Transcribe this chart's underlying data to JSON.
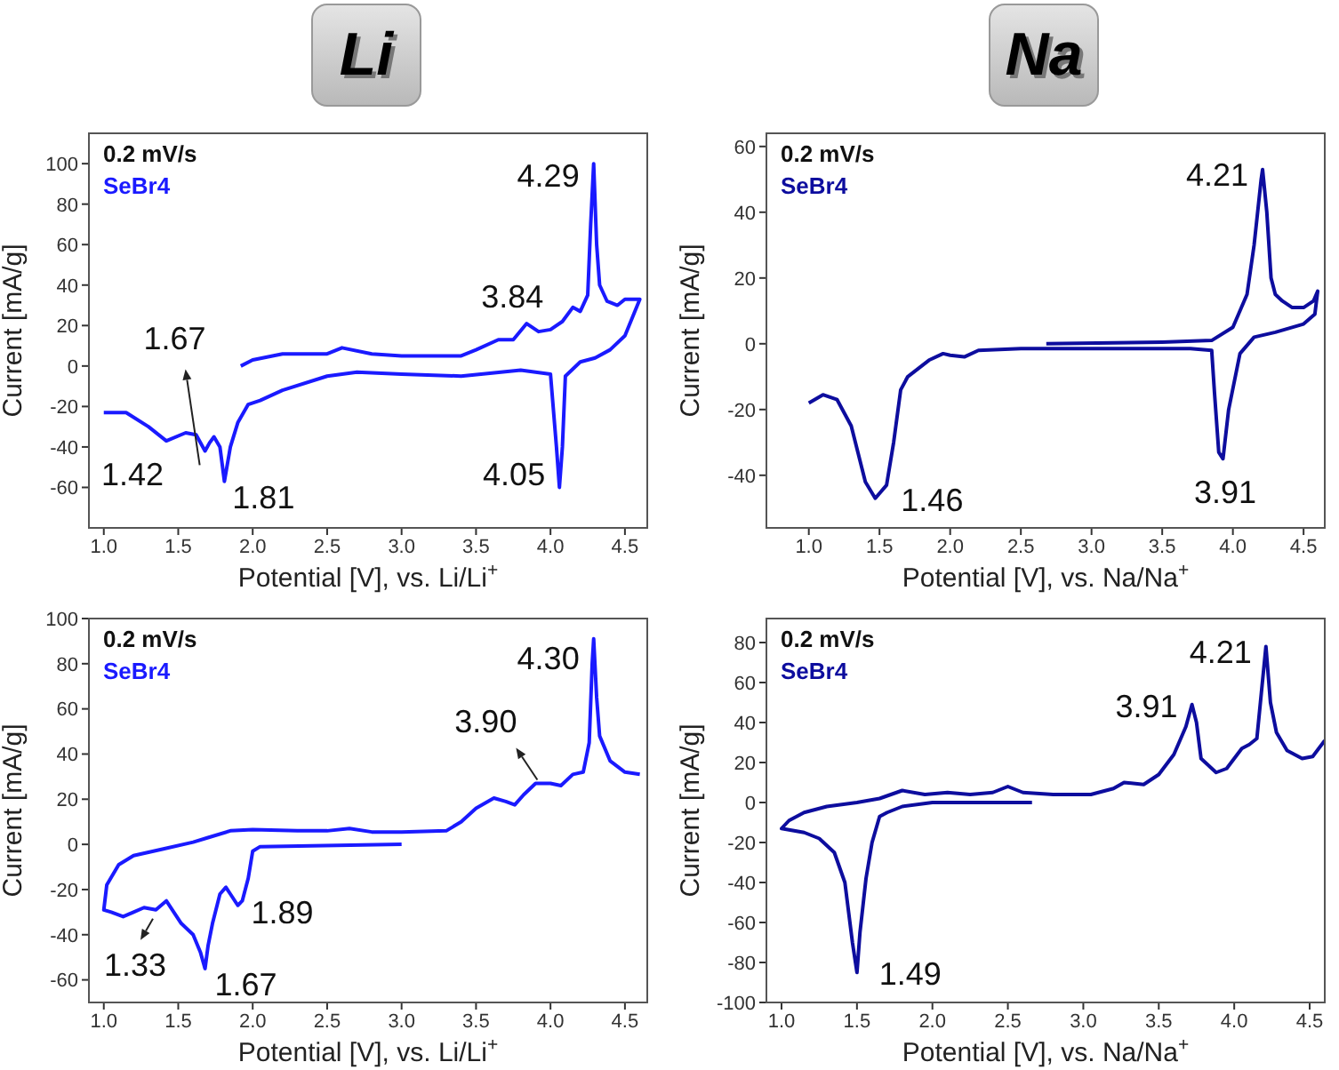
{
  "chart_data": [
    {
      "type": "line",
      "title": "Li",
      "xlabel": "Potential [V], vs. Li/Li$^{+}$",
      "ylabel": "Current [mA/g]",
      "xlim": [
        0.9,
        4.65
      ],
      "xticks": [
        {
          "value": 1,
          "label": "1.0"
        },
        {
          "value": 1.5,
          "label": "1.5"
        },
        {
          "value": 2,
          "label": "2.0"
        },
        {
          "value": 2.5,
          "label": "2.5"
        },
        {
          "value": 3,
          "label": "3.0"
        },
        {
          "value": 3.5,
          "label": "3.5"
        },
        {
          "value": 4,
          "label": "4.0"
        },
        {
          "value": 4.5,
          "label": "4.5"
        }
      ],
      "ylim": [
        -80,
        115
      ],
      "yticks": [
        -60,
        -40,
        -20,
        0,
        20,
        40,
        60,
        80,
        100
      ],
      "marker": "none",
      "series": [
        {
          "name": "SeBr4",
          "color": "#1a1aff",
          "x": [
            1.92,
            2.0,
            2.2,
            2.5,
            2.6,
            2.8,
            3.0,
            3.4,
            3.5,
            3.65,
            3.75,
            3.84,
            3.92,
            4.0,
            4.08,
            4.15,
            4.2,
            4.25,
            4.27,
            4.29,
            4.31,
            4.33,
            4.38,
            4.45,
            4.5,
            4.6,
            4.5,
            4.4,
            4.3,
            4.2,
            4.1,
            4.08,
            4.06,
            4.04,
            4.0,
            3.8,
            3.4,
            3.0,
            2.7,
            2.5,
            2.2,
            2.05,
            1.97,
            1.9,
            1.85,
            1.81,
            1.78,
            1.74,
            1.71,
            1.68,
            1.62,
            1.55,
            1.42,
            1.3,
            1.15,
            1.0
          ],
          "values": [
            0,
            3,
            6,
            6,
            9,
            6,
            5,
            5,
            8,
            13,
            13,
            21,
            17,
            18,
            22,
            29,
            27,
            35,
            70,
            100,
            60,
            40,
            32,
            30,
            33,
            33,
            15,
            8,
            4,
            2,
            -5,
            -40,
            -60,
            -40,
            -4,
            -2,
            -5,
            -4,
            -3,
            -5,
            -12,
            -17,
            -19,
            -28,
            -40,
            -57,
            -40,
            -35,
            -38,
            -42,
            -34,
            -33,
            -37,
            -30,
            -23,
            -23
          ]
        }
      ],
      "annotations": [
        "0.2 mV/s",
        {
          "text": "4.29",
          "x": 4.29,
          "y": 100
        },
        {
          "text": "3.84",
          "x": 3.84,
          "y": 21
        },
        {
          "text": "4.05",
          "x": 4.06,
          "y": -60
        },
        {
          "text": "1.67",
          "x": 1.68,
          "y": -42
        },
        {
          "text": "1.42",
          "x": 1.42,
          "y": -37
        },
        {
          "text": "1.81",
          "x": 1.81,
          "y": -57
        }
      ]
    },
    {
      "type": "line",
      "title": "Na",
      "xlabel": "Potential [V], vs. Na/Na$^{+}$",
      "ylabel": "Current [mA/g]",
      "xlim": [
        0.7,
        4.65
      ],
      "xticks": [
        {
          "value": 1,
          "label": "1.0"
        },
        {
          "value": 1.5,
          "label": "1.5"
        },
        {
          "value": 2,
          "label": "2.0"
        },
        {
          "value": 2.5,
          "label": "2.5"
        },
        {
          "value": 3,
          "label": "3.0"
        },
        {
          "value": 3.5,
          "label": "3.5"
        },
        {
          "value": 4,
          "label": "4.0"
        },
        {
          "value": 4.5,
          "label": "4.5"
        }
      ],
      "ylim": [
        -56,
        64
      ],
      "yticks": [
        -40,
        -20,
        0,
        20,
        40,
        60
      ],
      "marker": "none",
      "series": [
        {
          "name": "SeBr4",
          "color": "#0d0d9e",
          "x": [
            2.68,
            3.5,
            3.85,
            4.0,
            4.1,
            4.15,
            4.2,
            4.21,
            4.24,
            4.27,
            4.3,
            4.35,
            4.42,
            4.5,
            4.57,
            4.6,
            4.58,
            4.5,
            4.3,
            4.15,
            4.05,
            3.97,
            3.93,
            3.9,
            3.87,
            3.85,
            3.7,
            3.0,
            2.5,
            2.2,
            2.1,
            2.0,
            1.95,
            1.85,
            1.7,
            1.65,
            1.6,
            1.55,
            1.47,
            1.4,
            1.3,
            1.2,
            1.1,
            1.0
          ],
          "values": [
            0,
            0.5,
            1,
            5,
            15,
            30,
            50,
            53,
            40,
            20,
            15,
            13,
            11,
            11,
            13,
            16,
            9,
            6,
            3.5,
            2,
            -3,
            -20,
            -35,
            -33,
            -15,
            -2,
            -1.5,
            -1.5,
            -1.5,
            -2,
            -4,
            -3.5,
            -3,
            -5,
            -10,
            -14,
            -30,
            -43,
            -47,
            -42,
            -25,
            -17,
            -15.5,
            -18
          ]
        }
      ],
      "annotations": [
        "0.2 mV/s",
        {
          "text": "4.21",
          "x": 4.21,
          "y": 53
        },
        {
          "text": "1.46",
          "x": 1.47,
          "y": -47
        },
        {
          "text": "3.91",
          "x": 3.92,
          "y": -35
        }
      ]
    },
    {
      "type": "line",
      "xlabel": "Potential [V], vs. Li/Li$^{+}$",
      "ylabel": "Current [mA/g]",
      "xlim": [
        0.9,
        4.65
      ],
      "xticks": [
        {
          "value": 1,
          "label": "1.0"
        },
        {
          "value": 1.5,
          "label": "1.5"
        },
        {
          "value": 2,
          "label": "2.0"
        },
        {
          "value": 2.5,
          "label": "2.5"
        },
        {
          "value": 3,
          "label": "3.0"
        },
        {
          "value": 3.5,
          "label": "3.5"
        },
        {
          "value": 4,
          "label": "4.0"
        },
        {
          "value": 4.5,
          "label": "4.5"
        }
      ],
      "ylim": [
        -70,
        100
      ],
      "yticks": [
        -60,
        -40,
        -20,
        0,
        20,
        40,
        60,
        80,
        100
      ],
      "marker": "none",
      "series": [
        {
          "name": "SeBr4",
          "color": "#1a1aff",
          "x": [
            3.0,
            2.05,
            2.0,
            1.97,
            1.93,
            1.9,
            1.85,
            1.82,
            1.78,
            1.73,
            1.7,
            1.68,
            1.65,
            1.6,
            1.52,
            1.42,
            1.35,
            1.27,
            1.2,
            1.13,
            1.05,
            1.0,
            1.02,
            1.1,
            1.2,
            1.4,
            1.6,
            1.7,
            1.85,
            2.0,
            2.3,
            2.5,
            2.65,
            2.8,
            3.0,
            3.3,
            3.4,
            3.5,
            3.62,
            3.7,
            3.76,
            3.82,
            3.9,
            4.0,
            4.07,
            4.15,
            4.22,
            4.26,
            4.28,
            4.29,
            4.31,
            4.33,
            4.4,
            4.5,
            4.6
          ],
          "values": [
            0,
            -1,
            -3,
            -15,
            -25,
            -27,
            -22,
            -19,
            -22,
            -35,
            -45,
            -55,
            -48,
            -40,
            -35,
            -25,
            -29,
            -28,
            -30,
            -32,
            -30,
            -29,
            -18,
            -9,
            -5,
            -2,
            1,
            3,
            6,
            6.5,
            6,
            6,
            7,
            5.5,
            5.5,
            6,
            10,
            16,
            20.5,
            19,
            17.5,
            22,
            27,
            27,
            26,
            31,
            32,
            45,
            80,
            91,
            65,
            48,
            37,
            32,
            31
          ]
        }
      ],
      "annotations": [
        "0.2 mV/s",
        {
          "text": "4.30",
          "x": 4.29,
          "y": 91
        },
        {
          "text": "3.90",
          "x": 3.9,
          "y": 27
        },
        {
          "text": "1.89",
          "x": 1.9,
          "y": -27
        },
        {
          "text": "1.67",
          "x": 1.68,
          "y": -55
        },
        {
          "text": "1.33",
          "x": 1.33,
          "y": -29
        }
      ]
    },
    {
      "type": "line",
      "xlabel": "Potential [V], vs. Na/Na$^{+}$",
      "ylabel": "Current [mA/g]",
      "xlim": [
        0.9,
        4.6
      ],
      "xticks": [
        {
          "value": 1,
          "label": "1.0"
        },
        {
          "value": 1.5,
          "label": "1.5"
        },
        {
          "value": 2,
          "label": "2.0"
        },
        {
          "value": 2.5,
          "label": "2.5"
        },
        {
          "value": 3,
          "label": "3.0"
        },
        {
          "value": 3.5,
          "label": "3.5"
        },
        {
          "value": 4,
          "label": "4.0"
        },
        {
          "value": 4.5,
          "label": "4.5"
        }
      ],
      "ylim": [
        -100,
        92
      ],
      "yticks": [
        -100,
        -80,
        -60,
        -40,
        -20,
        0,
        20,
        40,
        60,
        80
      ],
      "marker": "none",
      "series": [
        {
          "name": "SeBr4",
          "color": "#0d0d9e",
          "x": [
            2.66,
            2.0,
            1.8,
            1.7,
            1.65,
            1.6,
            1.56,
            1.52,
            1.5,
            1.47,
            1.42,
            1.35,
            1.25,
            1.15,
            1.0,
            1.05,
            1.15,
            1.3,
            1.5,
            1.65,
            1.8,
            1.95,
            2.1,
            2.25,
            2.4,
            2.5,
            2.6,
            2.8,
            3.05,
            3.2,
            3.27,
            3.4,
            3.5,
            3.6,
            3.68,
            3.72,
            3.75,
            3.78,
            3.88,
            3.95,
            4.05,
            4.1,
            4.15,
            4.18,
            4.21,
            4.24,
            4.28,
            4.35,
            4.45,
            4.52,
            4.6
          ],
          "values": [
            0,
            0,
            -2,
            -5,
            -7,
            -20,
            -38,
            -65,
            -85,
            -70,
            -40,
            -25,
            -18,
            -15,
            -13,
            -9,
            -5,
            -2,
            0,
            2,
            6,
            4,
            5,
            4,
            5,
            8,
            5,
            4,
            4,
            7,
            10,
            9,
            14,
            24,
            38,
            49,
            40,
            22,
            15,
            17,
            27,
            29,
            32,
            55,
            78,
            50,
            35,
            26,
            22,
            23,
            31
          ]
        }
      ],
      "annotations": [
        "0.2 mV/s",
        {
          "text": "1.49",
          "x": 1.5,
          "y": -85
        },
        {
          "text": "3.91",
          "x": 3.72,
          "y": 49
        },
        {
          "text": "4.21",
          "x": 4.21,
          "y": 78
        }
      ]
    }
  ]
}
